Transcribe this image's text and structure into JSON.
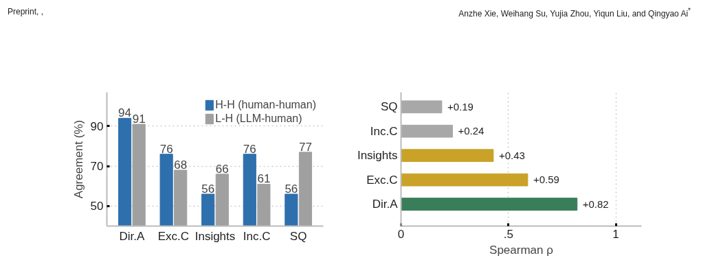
{
  "chart_data": [
    {
      "type": "bar",
      "ylabel": "Agreement (%)",
      "categories": [
        "Dir.A",
        "Exc.C",
        "Insights",
        "Inc.C",
        "SQ"
      ],
      "series": [
        {
          "name": "H-H (human-human)",
          "color": "#2e6fad",
          "values": [
            94,
            76,
            56,
            76,
            56
          ]
        },
        {
          "name": "L-H (LLM-human)",
          "color": "#a0a0a0",
          "values": [
            91,
            68,
            66,
            61,
            77
          ]
        }
      ],
      "ylim": [
        40,
        107
      ],
      "yticks": [
        50,
        70,
        90
      ],
      "grid": "y",
      "legend": "top right",
      "data_labels": true,
      "annotations": [
        "Preprint, ,"
      ]
    },
    {
      "type": "bar",
      "orientation": "horizontal",
      "xlabel": "Spearman ρ",
      "categories": [
        "SQ",
        "Inc.C",
        "Insights",
        "Exc.C",
        "Dir.A"
      ],
      "values": [
        0.19,
        0.24,
        0.43,
        0.59,
        0.82
      ],
      "colors": [
        "#a8a8a8",
        "#a8a8a8",
        "#c9a227",
        "#c9a227",
        "#3a7d59"
      ],
      "value_labels": [
        "+0.19",
        "+0.24",
        "+0.43",
        "+0.59",
        "+0.82"
      ],
      "xlim": [
        0,
        1.12
      ],
      "xticks": [
        0,
        {
          "value": 0.5,
          "label": ".5"
        },
        1
      ],
      "grid": "x",
      "annotations": [
        "Anzhe Xie, Weihang Su, Yujia Zhou, Yiqun Liu, and Qingyao Ai$^{*}$"
      ]
    }
  ]
}
